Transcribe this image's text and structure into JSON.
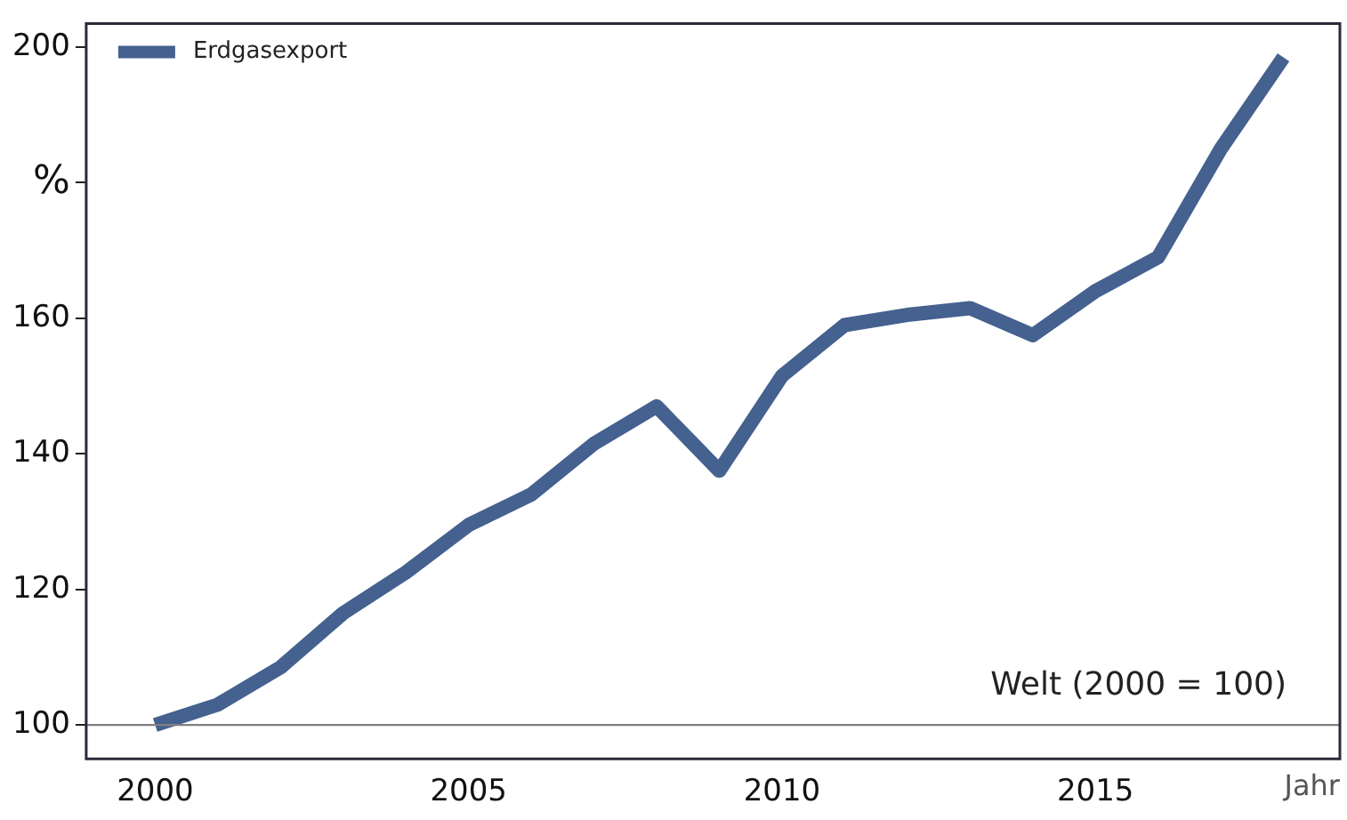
{
  "chart_data": {
    "type": "line",
    "xlabel": "Jahr",
    "annotations": [
      "Welt (2000 = 100)"
    ],
    "x": [
      2000,
      2001,
      2002,
      2003,
      2004,
      2005,
      2006,
      2007,
      2008,
      2009,
      2010,
      2011,
      2012,
      2013,
      2014,
      2015,
      2016,
      2017,
      2018
    ],
    "series": [
      {
        "name": "Erdgasexport",
        "color": "#44618f",
        "values": [
          100,
          103,
          108.5,
          116.5,
          122.5,
          129.5,
          134,
          141.5,
          147,
          137.5,
          151.5,
          159,
          160.5,
          161.5,
          157.5,
          164,
          169,
          185,
          198.5
        ]
      }
    ],
    "xlim": [
      1998.9,
      2018.9
    ],
    "xticks": [
      2000,
      2005,
      2010,
      2015
    ],
    "ylim": [
      95,
      203.5
    ],
    "yticks": [
      100,
      120,
      140,
      160,
      {
        "value": 180,
        "label": "%"
      },
      200
    ],
    "ref_lines": [
      {
        "axis": "y",
        "value": 100,
        "color": "#808080"
      }
    ],
    "legend": "top left",
    "grid": false,
    "marker": "none",
    "line_style": "solid"
  }
}
